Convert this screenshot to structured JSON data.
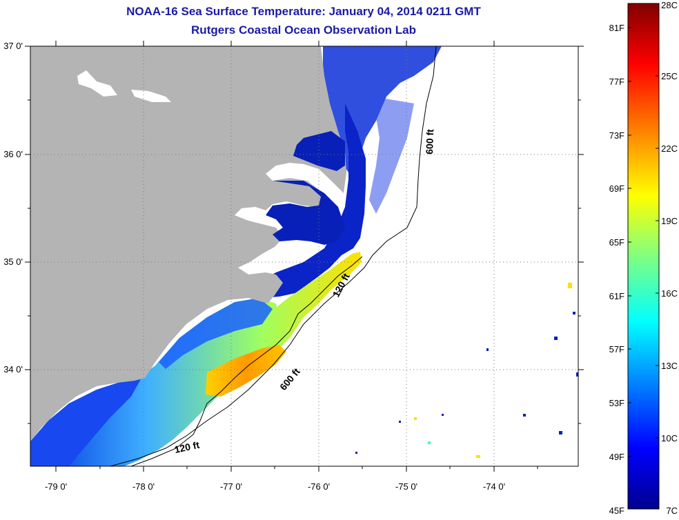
{
  "title": "NOAA-16 Sea Surface Temperature:  January 04, 2014 0211 GMT",
  "subtitle": "Rutgers Coastal Ocean Observation Lab",
  "map": {
    "lon_labels": [
      "-79 0'",
      "-78 0'",
      "-77 0'",
      "-76 0'",
      "-75 0'",
      "-74 0'"
    ],
    "lat_labels": [
      "37 0'",
      "36 0'",
      "35 0'",
      "34 0'"
    ],
    "lon_range": [
      -79.3,
      -73.1
    ],
    "lat_range": [
      33.3,
      37.0
    ],
    "contours": [
      {
        "label": "600 ft"
      },
      {
        "label": "120 ft"
      },
      {
        "label": "600 ft"
      },
      {
        "label": "120 ft"
      }
    ],
    "colors": {
      "land": "#b4b4b4",
      "frame": "#000000",
      "grid": "#777777"
    }
  },
  "colorbar": {
    "fahrenheit": [
      "81F",
      "77F",
      "73F",
      "69F",
      "65F",
      "61F",
      "57F",
      "53F",
      "49F",
      "45F"
    ],
    "celsius": [
      "28C",
      "25C",
      "22C",
      "19C",
      "16C",
      "13C",
      "10C",
      "7C"
    ],
    "range_c": [
      7,
      28
    ],
    "colors": [
      "#00008f",
      "#0000ff",
      "#0080ff",
      "#00ffff",
      "#80ff80",
      "#ffff00",
      "#ff8000",
      "#ff0000",
      "#800000"
    ]
  }
}
